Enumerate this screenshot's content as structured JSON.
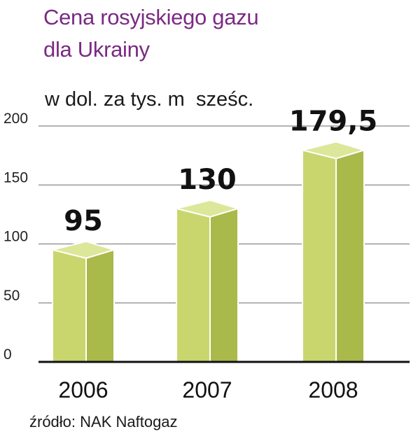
{
  "title_lines": [
    "Cena rosyjskiego gazu",
    "dla Ukrainy"
  ],
  "unit_label": "w dol. za tys. m  sześc.",
  "source": "źródło: NAK Naftogaz",
  "colors": {
    "title": "#7a2a83",
    "bar_front": "#c9d66e",
    "bar_side": "#a9b94a",
    "bar_top": "#dde79a",
    "grid": "#888888",
    "axis": "#111111"
  },
  "chart_data": {
    "type": "bar",
    "title": "Cena rosyjskiego gazu dla Ukrainy",
    "ylabel": "w dol. za tys. m  sześc.",
    "xlabel": "",
    "categories": [
      "2006",
      "2007",
      "2008"
    ],
    "values": [
      95,
      130,
      179.5
    ],
    "value_labels": [
      "95",
      "130",
      "179,5"
    ],
    "ylim": [
      0,
      200
    ],
    "yticks": [
      0,
      50,
      100,
      150,
      200
    ],
    "ytick_labels": [
      "0",
      "50",
      "100",
      "150",
      "200"
    ],
    "grid": true,
    "legend": "none"
  }
}
